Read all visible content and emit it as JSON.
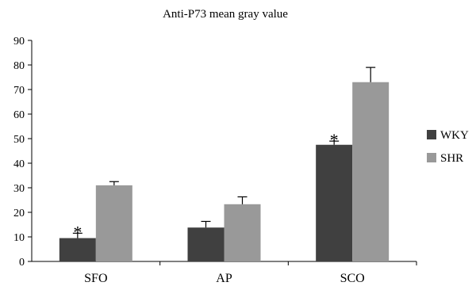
{
  "chart_data": {
    "type": "bar",
    "title": "Anti-P73 mean gray value",
    "xlabel": "",
    "ylabel": "",
    "ylim": [
      0,
      90
    ],
    "yticks": [
      0,
      10,
      20,
      30,
      40,
      50,
      60,
      70,
      80,
      90
    ],
    "categories": [
      "SFO",
      "AP",
      "SCO"
    ],
    "series": [
      {
        "name": "WKY",
        "color": "#404040",
        "values": [
          9.5,
          13.8,
          47.5
        ],
        "errors": [
          2.0,
          2.5,
          1.5
        ]
      },
      {
        "name": "SHR",
        "color": "#999999",
        "values": [
          31.0,
          23.3,
          73.0
        ],
        "errors": [
          1.5,
          3.0,
          6.0
        ]
      }
    ],
    "annotations": [
      {
        "text": "*",
        "category": "SFO",
        "series": "WKY"
      },
      {
        "text": "*",
        "category": "SCO",
        "series": "WKY"
      }
    ],
    "grid": false,
    "legend": "right"
  }
}
